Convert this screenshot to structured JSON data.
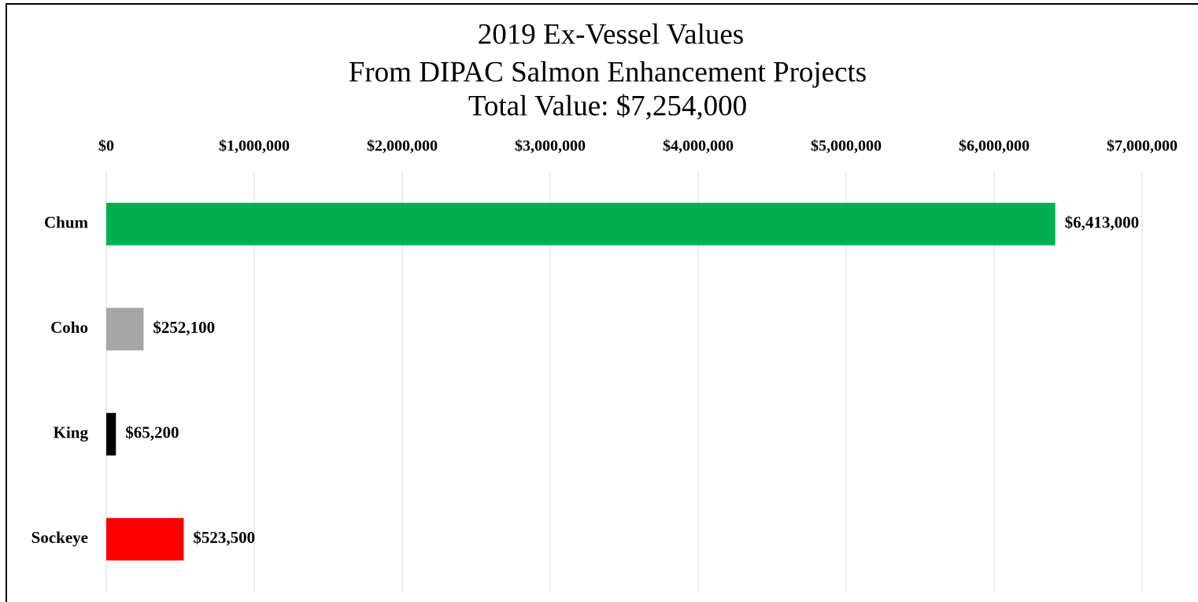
{
  "chart_data": {
    "type": "bar",
    "orientation": "horizontal",
    "title": "2019 Ex-Vessel Values",
    "subtitle": [
      "From DIPAC Salmon Enhancement Projects",
      "Total Value: $7,254,000"
    ],
    "categories": [
      "Chum",
      "Coho",
      "King",
      "Sockeye"
    ],
    "values": [
      6413000,
      252100,
      65200,
      523500
    ],
    "value_labels": [
      "$6,413,000",
      "$252,100",
      "$65,200",
      "$523,500"
    ],
    "colors": [
      "#00b050",
      "#a6a6a6",
      "#000000",
      "#ff0000"
    ],
    "xlim": [
      0,
      7000000
    ],
    "xticks": [
      {
        "value": 0,
        "label": "$0"
      },
      {
        "value": 1000000,
        "label": "$1,000,000"
      },
      {
        "value": 2000000,
        "label": "$2,000,000"
      },
      {
        "value": 3000000,
        "label": "$3,000,000"
      },
      {
        "value": 4000000,
        "label": "$4,000,000"
      },
      {
        "value": 5000000,
        "label": "$5,000,000"
      },
      {
        "value": 6000000,
        "label": "$6,000,000"
      },
      {
        "value": 7000000,
        "label": "$7,000,000"
      }
    ],
    "xaxis_position": "top",
    "grid": true
  }
}
